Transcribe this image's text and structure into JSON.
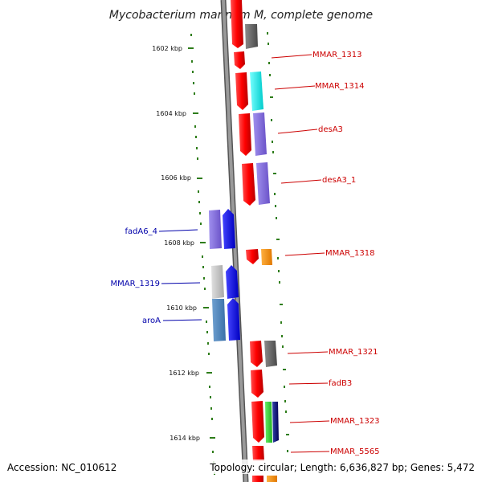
{
  "title": "Mycobacterium marinum M, complete genome",
  "footer": {
    "accession": "Accession: NC_010612",
    "topology": "Topology: circular; Length: 6,636,827 bp; Genes: 5,472"
  },
  "colors": {
    "backbone": "#808080",
    "tick": "#2e7d1a",
    "label_forward": "#cc0000",
    "label_reverse": "#0000aa"
  },
  "kbp_labels": [
    "1602 kbp",
    "1604 kbp",
    "1606 kbp",
    "1608 kbp",
    "1610 kbp",
    "1612 kbp",
    "1614 kbp"
  ],
  "gene_labels_right": [
    "MMAR_1313",
    "MMAR_1314",
    "desA3",
    "desA3_1",
    "MMAR_1318",
    "MMAR_1321",
    "fadB3",
    "MMAR_1323",
    "MMAR_5565"
  ],
  "gene_labels_left": [
    "fadA6_4",
    "MMAR_1319",
    "aroA"
  ]
}
